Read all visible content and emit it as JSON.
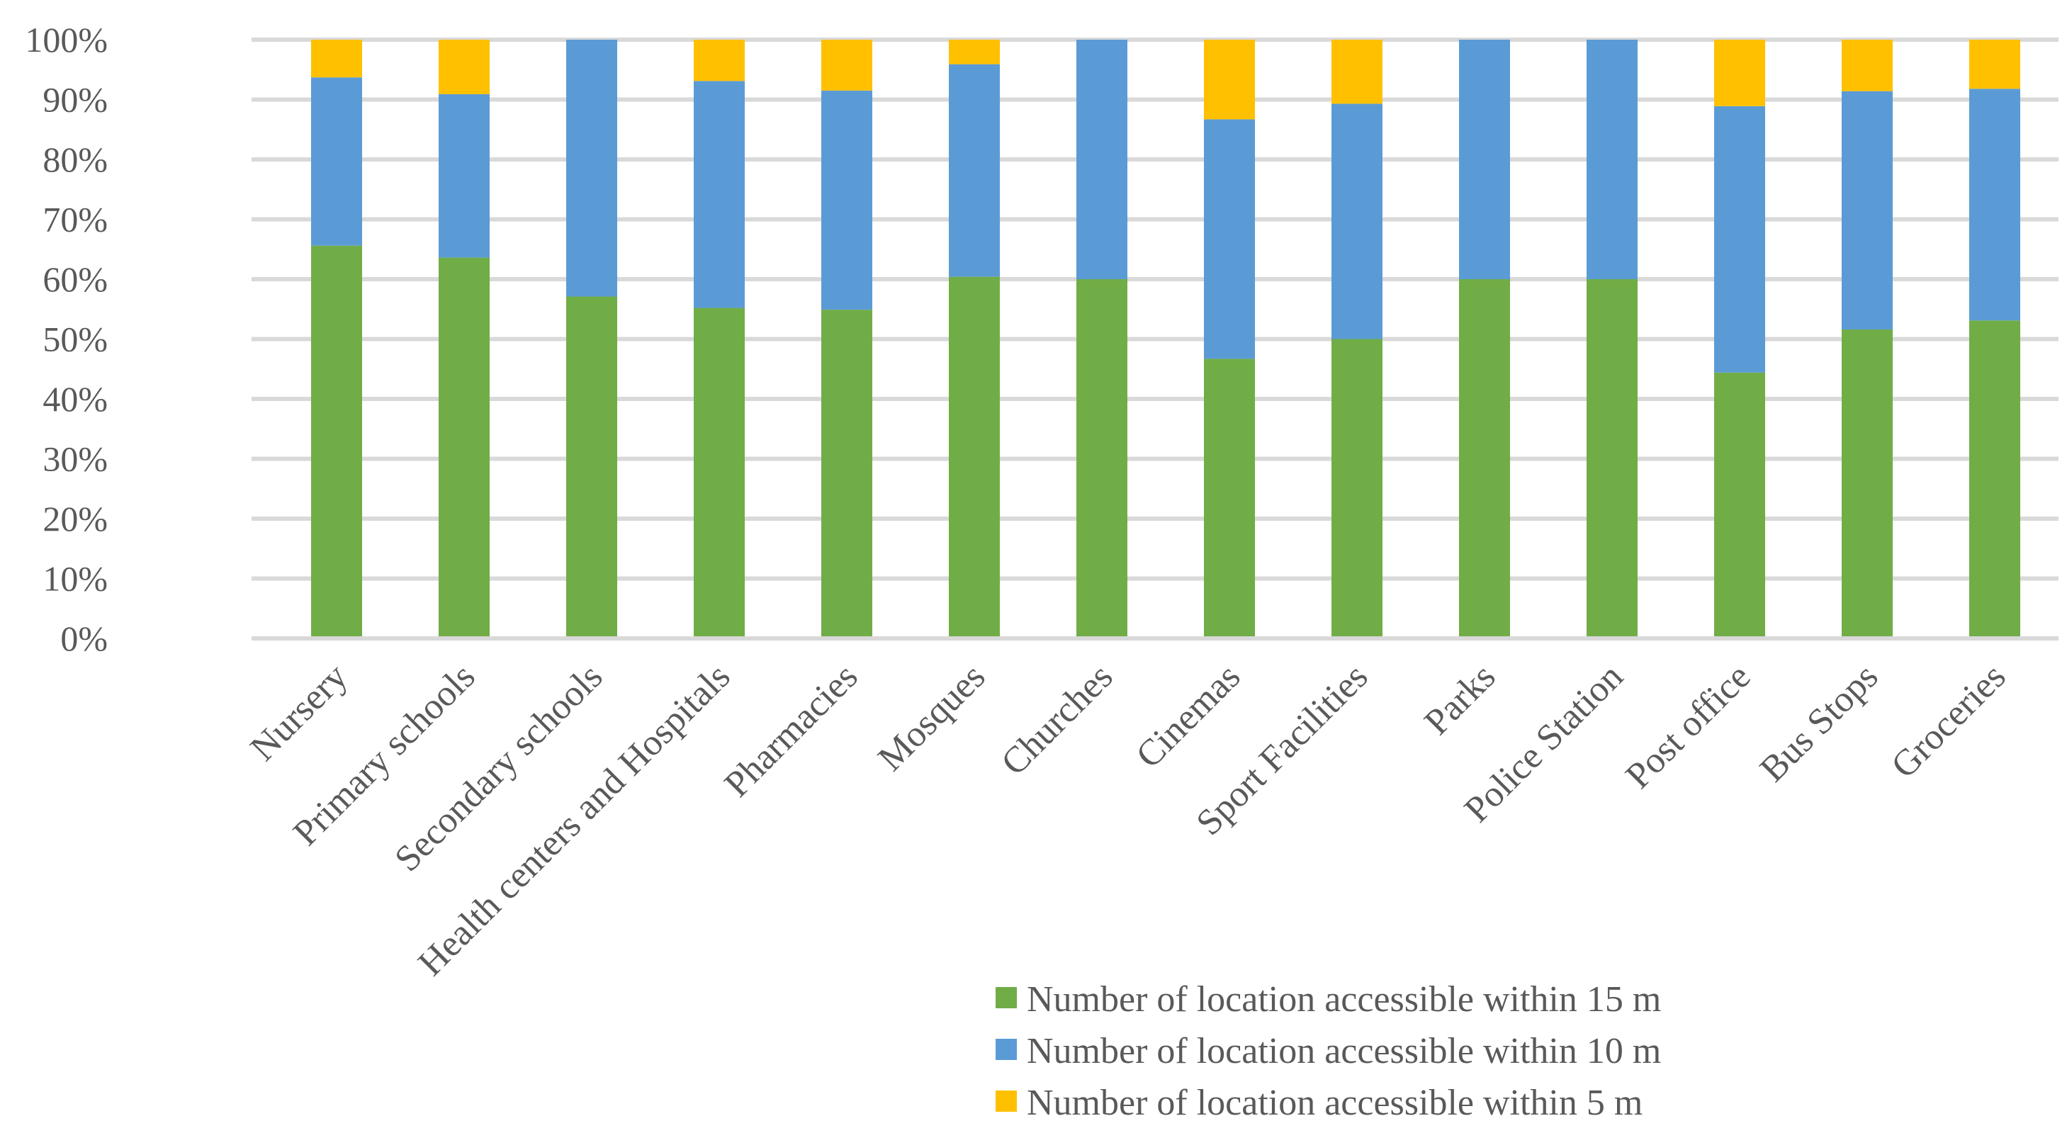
{
  "chart_data": {
    "type": "bar",
    "stacked": true,
    "percent": true,
    "title": "",
    "xlabel": "",
    "ylabel": "",
    "ylim": [
      0,
      100
    ],
    "yticks": [
      0,
      10,
      20,
      30,
      40,
      50,
      60,
      70,
      80,
      90,
      100
    ],
    "ytick_labels": [
      "0%",
      "10%",
      "20%",
      "30%",
      "40%",
      "50%",
      "60%",
      "70%",
      "80%",
      "90%",
      "100%"
    ],
    "grid": true,
    "legend_position": "bottom-right",
    "categories": [
      "Nursery",
      "Primary schools",
      "Secondary schools",
      "Health centers and Hospitals",
      "Pharmacies",
      "Mosques",
      "Churches",
      "Cinemas",
      "Sport Facilities",
      "Parks",
      "Police Station",
      "Post office",
      "Bus Stops",
      "Groceries"
    ],
    "series": [
      {
        "name": "Number of location accessible within 15 m",
        "color": "#70ad47",
        "values": [
          65.6,
          63.6,
          57.1,
          55.2,
          54.9,
          60.4,
          60.0,
          46.7,
          50.0,
          60.0,
          60.0,
          44.4,
          51.6,
          53.1
        ]
      },
      {
        "name": "Number of location accessible within 10 m",
        "color": "#5b9bd5",
        "values": [
          28.1,
          27.3,
          42.9,
          37.9,
          36.6,
          35.5,
          40.0,
          40.0,
          39.3,
          40.0,
          40.0,
          44.5,
          39.8,
          38.7
        ]
      },
      {
        "name": "Number of location accessible within 5 m",
        "color": "#ffc000",
        "values": [
          6.3,
          9.1,
          0.0,
          6.9,
          8.5,
          4.1,
          0.0,
          13.3,
          10.7,
          0.0,
          0.0,
          11.1,
          8.6,
          8.2
        ]
      }
    ]
  }
}
